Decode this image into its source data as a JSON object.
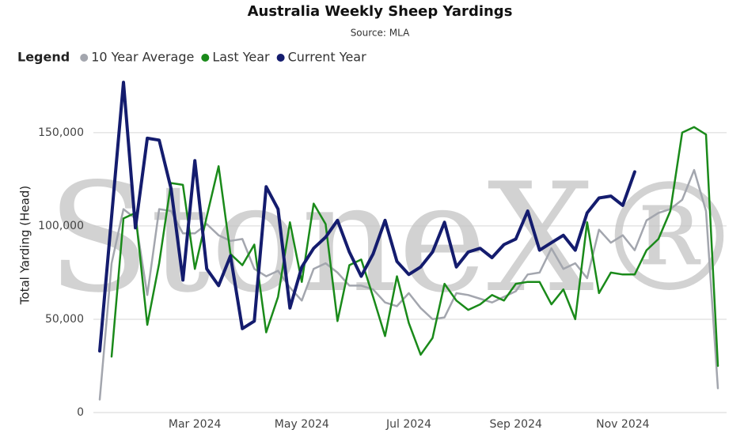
{
  "chart_data": {
    "type": "line",
    "title": "Australia Weekly Sheep Yardings",
    "subtitle": "Source: MLA",
    "watermark": "StoneX®",
    "legend_title": "Legend",
    "y_label": "Total Yarding (Head)",
    "categories": [
      null,
      null,
      null,
      null,
      null,
      null,
      null,
      null,
      "Mar 2024",
      null,
      null,
      null,
      null,
      null,
      null,
      null,
      null,
      "May 2024",
      null,
      null,
      null,
      null,
      null,
      null,
      null,
      null,
      "Jul 2024",
      null,
      null,
      null,
      null,
      null,
      null,
      null,
      null,
      "Sep 2024",
      null,
      null,
      null,
      null,
      null,
      null,
      null,
      null,
      "Nov 2024",
      null,
      null,
      null,
      null,
      null,
      null,
      null,
      null
    ],
    "series": [
      {
        "name": "10 Year Average",
        "color": "#a3a6ae",
        "width": 2.5,
        "values": [
          7000,
          80000,
          109000,
          104000,
          63000,
          109000,
          108000,
          96000,
          96000,
          101000,
          95000,
          92000,
          93000,
          77000,
          73000,
          76000,
          67000,
          60000,
          77000,
          80000,
          75000,
          68000,
          68000,
          66000,
          59000,
          57000,
          64000,
          56000,
          50000,
          51000,
          64000,
          63000,
          61000,
          59000,
          62000,
          65000,
          74000,
          75000,
          88000,
          77000,
          80000,
          72000,
          98000,
          91000,
          95000,
          87000,
          103000,
          107000,
          109000,
          114000,
          130000,
          108000,
          13000
        ]
      },
      {
        "name": "Last Year",
        "color": "#1a8a1a",
        "width": 2.5,
        "values": [
          null,
          30000,
          104000,
          107000,
          47000,
          80000,
          123000,
          122000,
          77000,
          105000,
          132000,
          85000,
          79000,
          90000,
          43000,
          62000,
          102000,
          70000,
          112000,
          101000,
          49000,
          79000,
          82000,
          62000,
          41000,
          73000,
          48000,
          31000,
          40000,
          69000,
          60000,
          55000,
          58000,
          63000,
          60000,
          69000,
          70000,
          70000,
          58000,
          66000,
          50000,
          102000,
          64000,
          75000,
          74000,
          74000,
          87000,
          93000,
          108000,
          150000,
          153000,
          149000,
          25000
        ]
      },
      {
        "name": "Current Year",
        "color": "#141c6e",
        "width": 4,
        "values": [
          33000,
          105000,
          177000,
          99000,
          147000,
          146000,
          120000,
          71000,
          135000,
          77000,
          68000,
          84000,
          45000,
          49000,
          121000,
          109000,
          56000,
          78000,
          88000,
          94000,
          103000,
          86000,
          73000,
          85000,
          103000,
          81000,
          74000,
          78000,
          86000,
          102000,
          78000,
          86000,
          88000,
          83000,
          90000,
          93000,
          108000,
          87000,
          91000,
          95000,
          87000,
          107000,
          115000,
          116000,
          111000,
          129000,
          null,
          null,
          null,
          null,
          null,
          null,
          null
        ]
      }
    ],
    "ylim": [
      0,
      180000
    ],
    "yticks": [
      0,
      {
        "value": 50000,
        "label": "50,000"
      },
      {
        "value": 100000,
        "label": "100,000"
      },
      {
        "value": 150000,
        "label": "150,000"
      }
    ],
    "grid": true
  }
}
